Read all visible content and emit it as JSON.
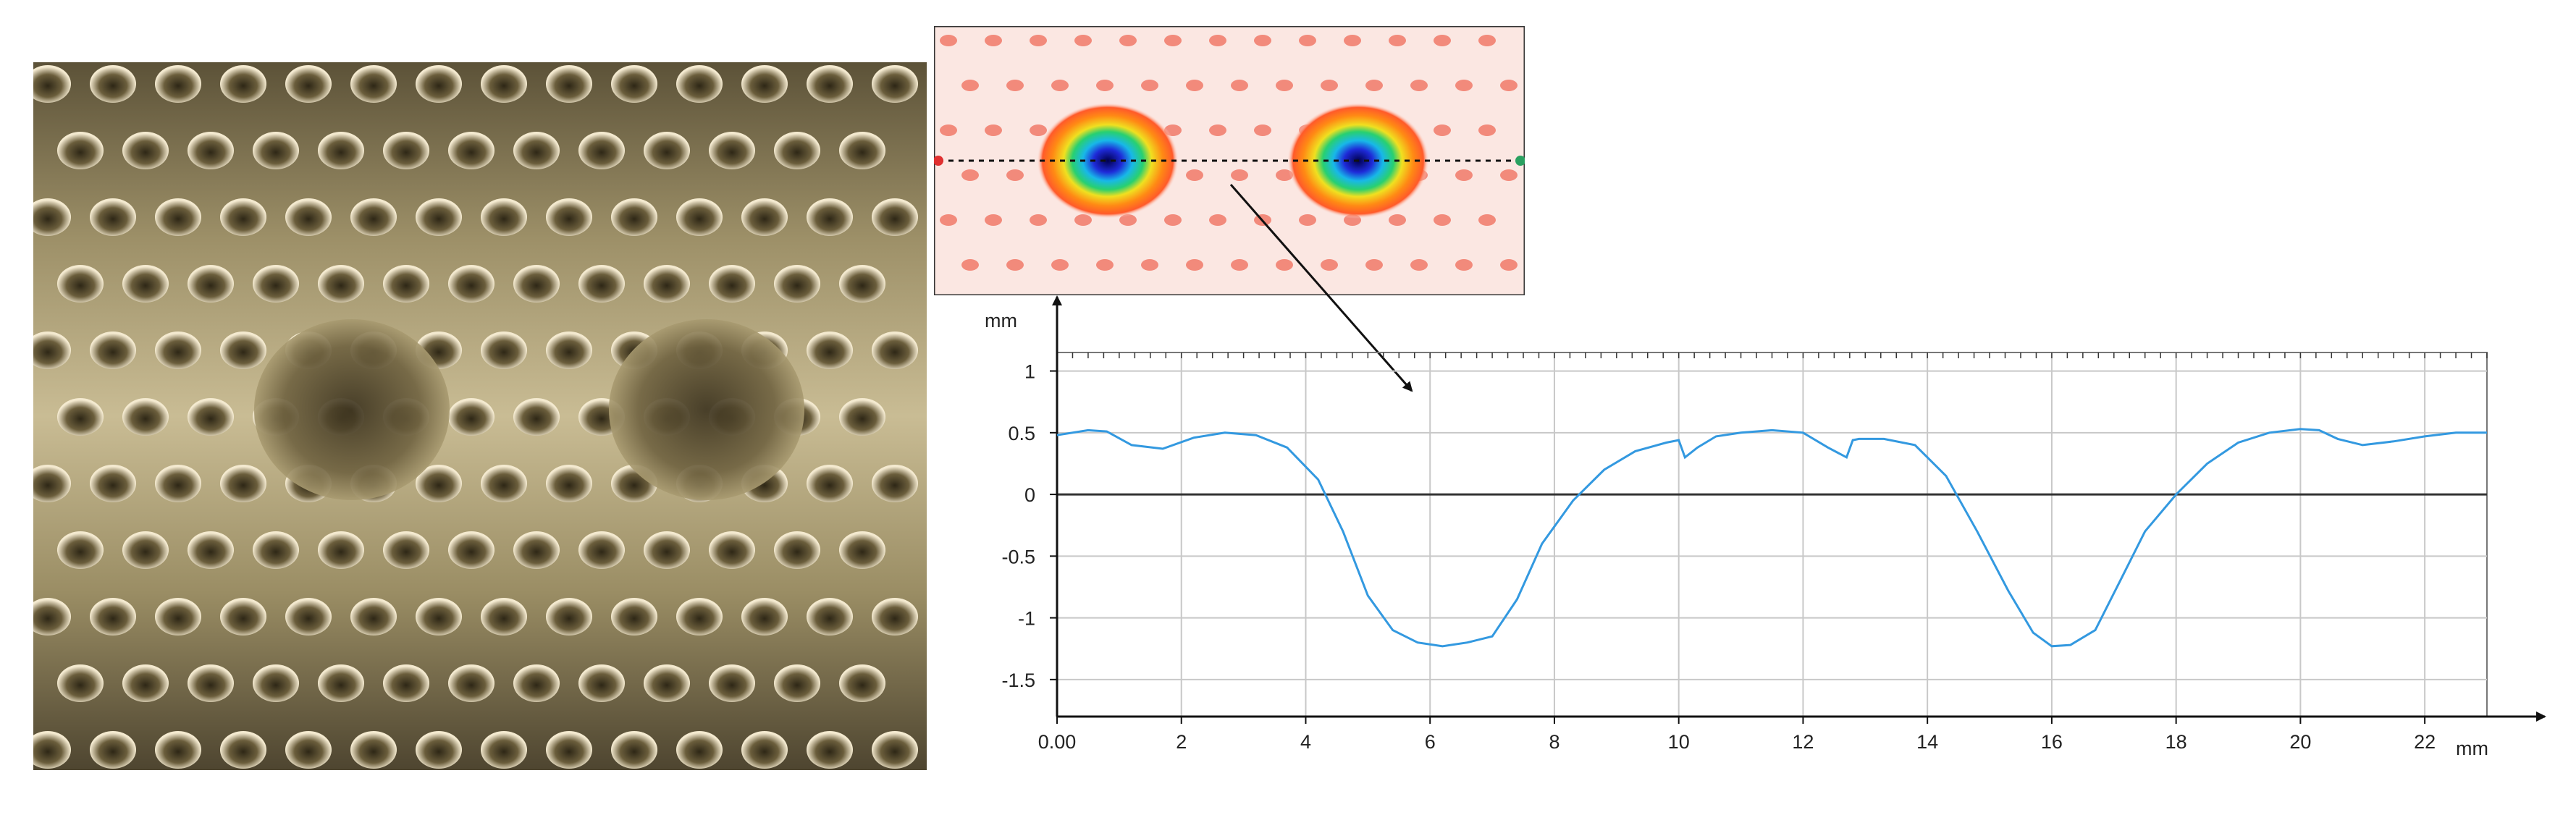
{
  "photo": {
    "description_icon": "embossed-dimple-surface-photo-icon",
    "colors": {
      "base": "#8a7d52",
      "highlight": "#f0e6c6",
      "shadow": "#3d3421"
    }
  },
  "heatmap": {
    "icon": "depth-map-icon",
    "colors": {
      "background": "#fbe7e2",
      "spot": "#ef6b58",
      "deep": "#1a1aa0",
      "profile_line": "#111111"
    }
  },
  "chart_data": {
    "type": "line",
    "title": "",
    "xlabel": "",
    "ylabel": "",
    "x_unit": "mm",
    "y_unit": "mm",
    "xlim": [
      0,
      23
    ],
    "ylim": [
      -1.8,
      1.15
    ],
    "x_ticks": [
      {
        "value": 0,
        "label": "0.00"
      },
      {
        "value": 2,
        "label": "2"
      },
      {
        "value": 4,
        "label": "4"
      },
      {
        "value": 6,
        "label": "6"
      },
      {
        "value": 8,
        "label": "8"
      },
      {
        "value": 10,
        "label": "10"
      },
      {
        "value": 12,
        "label": "12"
      },
      {
        "value": 14,
        "label": "14"
      },
      {
        "value": 16,
        "label": "16"
      },
      {
        "value": 18,
        "label": "18"
      },
      {
        "value": 20,
        "label": "20"
      },
      {
        "value": 22,
        "label": "22"
      }
    ],
    "y_ticks": [
      {
        "value": 1,
        "label": "1"
      },
      {
        "value": 0.5,
        "label": "0.5"
      },
      {
        "value": 0,
        "label": "0"
      },
      {
        "value": -0.5,
        "label": "-0.5"
      },
      {
        "value": -1,
        "label": "-1"
      },
      {
        "value": -1.5,
        "label": "-1.5"
      }
    ],
    "grid": true,
    "line_color": "#3399e0",
    "series": [
      {
        "x": [
          0,
          0.5,
          0.8,
          1.2,
          1.7,
          2.2,
          2.7,
          3.2,
          3.7,
          4.2,
          4.6,
          5.0,
          5.4,
          5.8,
          6.2,
          6.6,
          7.0,
          7.4,
          7.8,
          8.3,
          8.8,
          9.3,
          9.8,
          10.0,
          10.1,
          10.3,
          10.6,
          11.0,
          11.5,
          12.0,
          12.4,
          12.7,
          12.8,
          12.9,
          13.3,
          13.8,
          14.3,
          14.8,
          15.3,
          15.7,
          16.0,
          16.3,
          16.7,
          17.1,
          17.5,
          18.0,
          18.5,
          19.0,
          19.5,
          20.0,
          20.3,
          20.6,
          21.0,
          21.5,
          22.0,
          22.5,
          23.0
        ],
        "y": [
          0.48,
          0.52,
          0.51,
          0.4,
          0.37,
          0.46,
          0.5,
          0.48,
          0.38,
          0.12,
          -0.3,
          -0.82,
          -1.1,
          -1.2,
          -1.23,
          -1.2,
          -1.15,
          -0.85,
          -0.4,
          -0.05,
          0.2,
          0.35,
          0.42,
          0.44,
          0.3,
          0.38,
          0.47,
          0.5,
          0.52,
          0.5,
          0.38,
          0.3,
          0.44,
          0.45,
          0.45,
          0.4,
          0.15,
          -0.3,
          -0.78,
          -1.12,
          -1.23,
          -1.22,
          -1.1,
          -0.7,
          -0.3,
          0.0,
          0.25,
          0.42,
          0.5,
          0.53,
          0.52,
          0.45,
          0.4,
          0.43,
          0.47,
          0.5,
          0.5
        ]
      }
    ]
  }
}
